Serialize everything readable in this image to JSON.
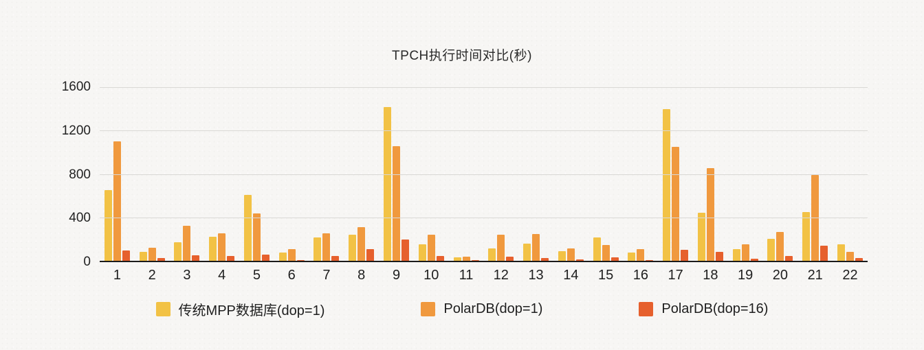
{
  "chart_data": {
    "type": "bar",
    "title": "TPCH执行时间对比(秒)",
    "categories": [
      "1",
      "2",
      "3",
      "4",
      "5",
      "6",
      "7",
      "8",
      "9",
      "10",
      "11",
      "12",
      "13",
      "14",
      "15",
      "16",
      "17",
      "18",
      "19",
      "20",
      "21",
      "22"
    ],
    "series": [
      {
        "name": "传统MPP数据库(dop=1)",
        "color": "#f2c245",
        "values": [
          650,
          80,
          170,
          220,
          610,
          75,
          215,
          240,
          1415,
          155,
          30,
          115,
          160,
          90,
          215,
          78,
          1395,
          440,
          110,
          200,
          450,
          150
        ]
      },
      {
        "name": "PolarDB(dop=1)",
        "color": "#f0993e",
        "values": [
          1100,
          120,
          325,
          255,
          435,
          110,
          255,
          310,
          1055,
          240,
          40,
          240,
          245,
          113,
          148,
          105,
          1050,
          855,
          155,
          268,
          790,
          80
        ]
      },
      {
        "name": "PolarDB(dop=16)",
        "color": "#e6602d",
        "values": [
          95,
          25,
          50,
          45,
          60,
          8,
          42,
          110,
          195,
          46,
          8,
          36,
          27,
          15,
          30,
          8,
          100,
          85,
          20,
          45,
          140,
          25
        ]
      }
    ],
    "xlabel": "",
    "ylabel": "",
    "ylim": [
      0,
      1600
    ],
    "yticks": [
      0,
      400,
      800,
      1200,
      1600
    ],
    "grid": true,
    "legend_position": "bottom"
  },
  "colors": {
    "background": "#f7f6f4",
    "gridline": "#d9d8d5",
    "axis": "#1b1b1b"
  }
}
